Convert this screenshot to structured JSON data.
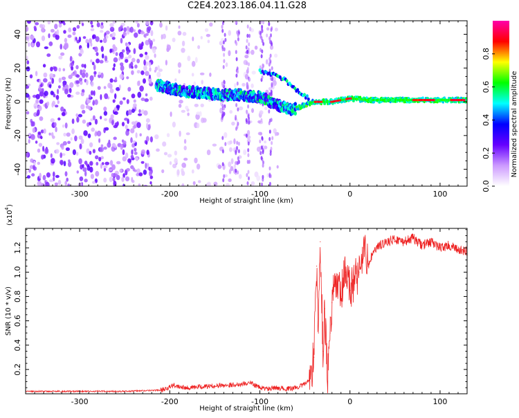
{
  "title": "C2E4.2023.186.04.11.G28",
  "chart_data": [
    {
      "type": "heatmap",
      "xlabel": "Height of straight line (km)",
      "ylabel": "Frequency (Hz)",
      "xlim": [
        -360,
        130
      ],
      "ylim": [
        -50,
        48
      ],
      "xticks": [
        "-300",
        "-200",
        "-100",
        "0",
        "100"
      ],
      "xtick_values": [
        -300,
        -200,
        -100,
        0,
        100
      ],
      "yticks": [
        "-40",
        "-20",
        "0",
        "20",
        "40"
      ],
      "ytick_values": [
        -40,
        -20,
        0,
        20,
        40
      ],
      "colorbar": {
        "label": "Normalized spectral amplitude",
        "range": [
          0,
          1
        ],
        "ticks": [
          "0.0",
          "0.2",
          "0.4",
          "0.6",
          "0.8"
        ],
        "tick_values": [
          0.0,
          0.2,
          0.4,
          0.6,
          0.8
        ],
        "colors": [
          "#ffffff",
          "#cc99ff",
          "#6600ff",
          "#0000ff",
          "#00ffff",
          "#00ff00",
          "#ffff00",
          "#ff0000",
          "#ff00aa"
        ]
      },
      "signal_track": [
        {
          "x": -215,
          "f": 10
        },
        {
          "x": -200,
          "f": 8
        },
        {
          "x": -180,
          "f": 6
        },
        {
          "x": -160,
          "f": 5
        },
        {
          "x": -140,
          "f": 4
        },
        {
          "x": -120,
          "f": 4
        },
        {
          "x": -100,
          "f": 3
        },
        {
          "x": -80,
          "f": -2
        },
        {
          "x": -65,
          "f": -5
        },
        {
          "x": -50,
          "f": -2
        },
        {
          "x": -40,
          "f": 0
        },
        {
          "x": -20,
          "f": 0
        },
        {
          "x": 0,
          "f": 2
        },
        {
          "x": 20,
          "f": 1
        },
        {
          "x": 60,
          "f": 1
        },
        {
          "x": 100,
          "f": 1
        },
        {
          "x": 130,
          "f": 1
        }
      ],
      "upper_branch": [
        {
          "x": -100,
          "f": 18
        },
        {
          "x": -85,
          "f": 16
        },
        {
          "x": -75,
          "f": 14
        },
        {
          "x": -65,
          "f": 10
        },
        {
          "x": -55,
          "f": 5
        },
        {
          "x": -45,
          "f": 2
        }
      ]
    },
    {
      "type": "line",
      "xlabel": "Height of straight line (km)",
      "ylabel": "SNR (10 * v/v)",
      "scale_note": "(x10",
      "scale_exp": "4",
      "scale_close": ")",
      "xlim": [
        -360,
        130
      ],
      "ylim": [
        0,
        1.36
      ],
      "xticks": [
        "-300",
        "-200",
        "-100",
        "0",
        "100"
      ],
      "xtick_values": [
        -300,
        -200,
        -100,
        0,
        100
      ],
      "yticks": [
        "0.2",
        "0.4",
        "0.6",
        "0.8",
        "1.0",
        "1.2"
      ],
      "ytick_values": [
        0.2,
        0.4,
        0.6,
        0.8,
        1.0,
        1.2
      ],
      "line_color": "#ee2222",
      "series": [
        {
          "x": [
            -360,
            -300,
            -250,
            -210,
            -195,
            -180,
            -160,
            -140,
            -120,
            -110,
            -100,
            -90,
            -80,
            -70,
            -60,
            -50,
            -45,
            -40,
            -37,
            -35,
            -33,
            -30,
            -28,
            -25,
            -22,
            -20,
            -15,
            -10,
            -5,
            0,
            5,
            10,
            15,
            20,
            25,
            30,
            40,
            50,
            60,
            70,
            80,
            90,
            100,
            110,
            120,
            130
          ],
          "y": [
            0.02,
            0.02,
            0.02,
            0.03,
            0.07,
            0.05,
            0.06,
            0.07,
            0.08,
            0.09,
            0.05,
            0.04,
            0.05,
            0.04,
            0.05,
            0.08,
            0.12,
            0.3,
            1.05,
            0.5,
            1.25,
            0.35,
            0.7,
            0.1,
            0.5,
            0.75,
            0.9,
            0.8,
            1.0,
            0.85,
            0.95,
            1.0,
            1.2,
            1.05,
            1.15,
            1.2,
            1.25,
            1.27,
            1.25,
            1.28,
            1.22,
            1.25,
            1.2,
            1.22,
            1.18,
            1.17
          ]
        }
      ]
    }
  ]
}
